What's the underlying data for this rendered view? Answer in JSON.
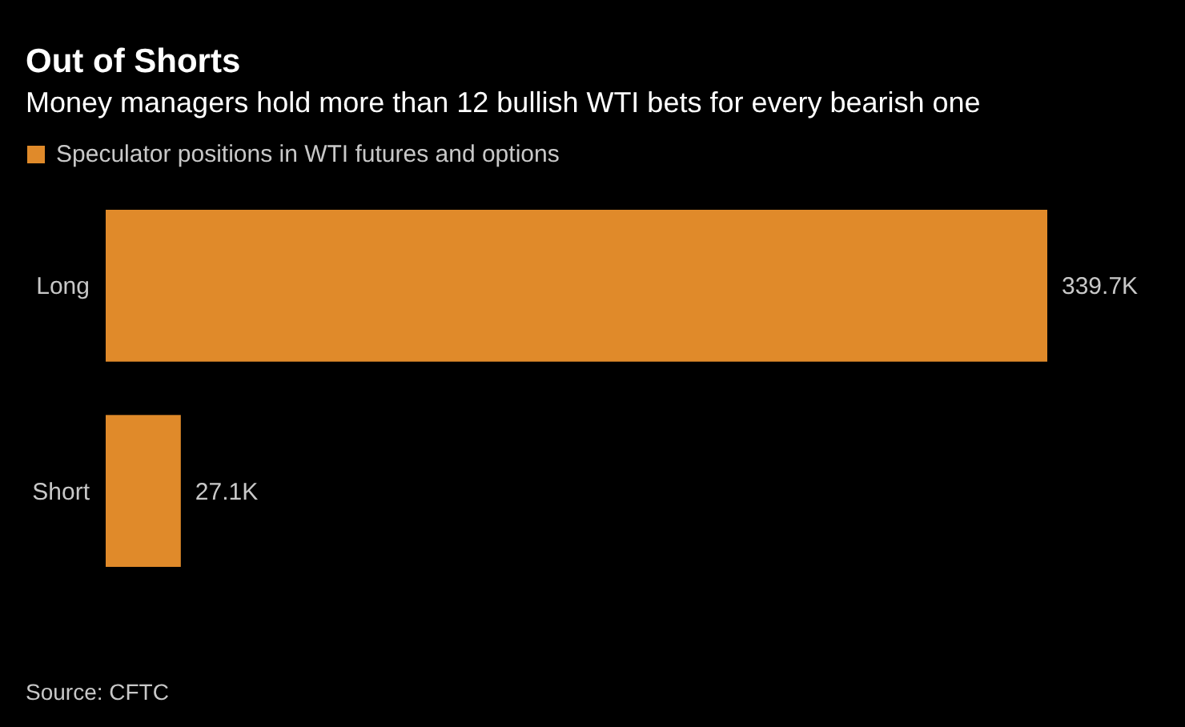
{
  "chart_data": {
    "type": "bar",
    "orientation": "horizontal",
    "title": "Out of Shorts",
    "subtitle": "Money managers hold more than 12 bullish WTI bets for every bearish one",
    "categories": [
      "Long",
      "Short"
    ],
    "series": [
      {
        "name": "Speculator positions in WTI futures and options",
        "color": "#e08a2a",
        "values": [
          339.7,
          27.1
        ],
        "value_labels": [
          "339.7K",
          "27.1K"
        ]
      }
    ],
    "legend": "top left",
    "annotations": [
      "Source: CFTC"
    ]
  }
}
